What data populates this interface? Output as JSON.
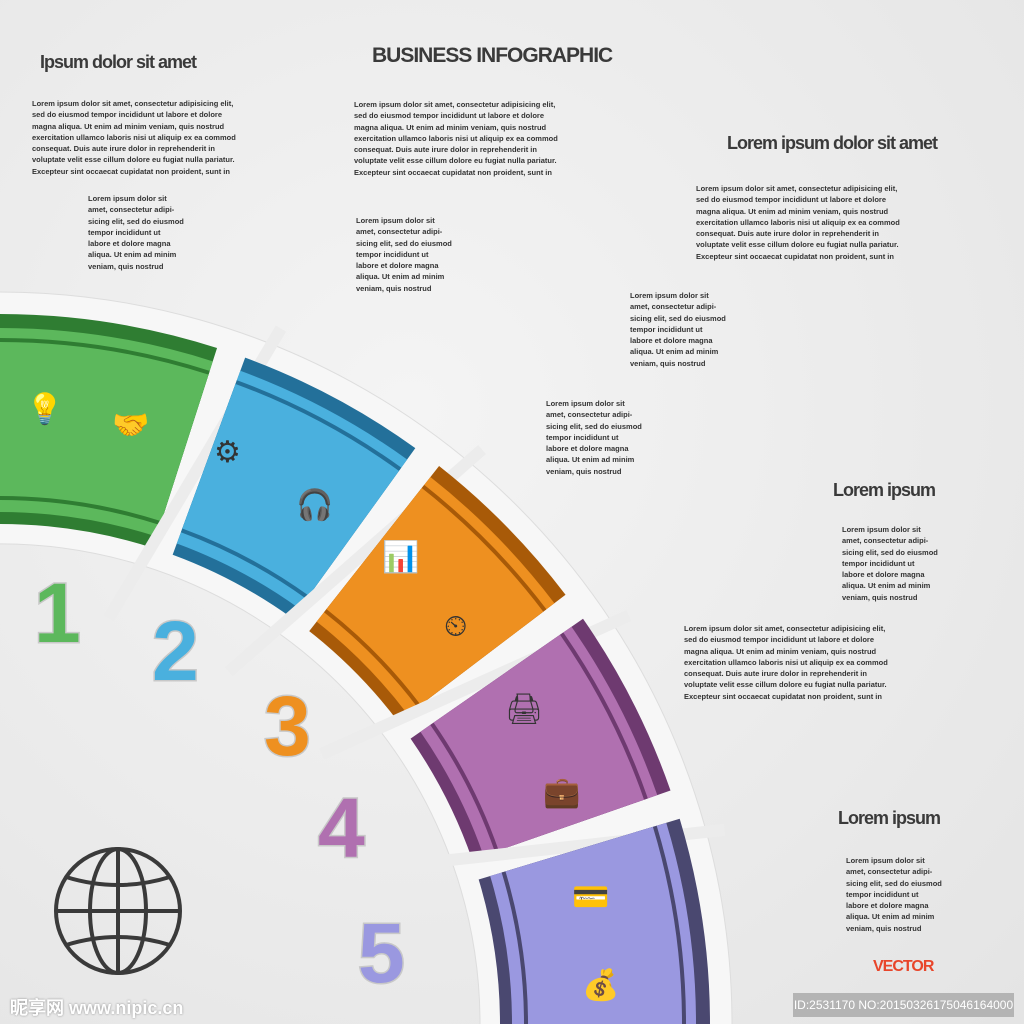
{
  "title": "BUSINESS INFOGRAPHIC",
  "headings": {
    "top_left": "Ipsum dolor sit amet",
    "right": "Lorem ipsum dolor sit amet",
    "mid_right": "Lorem ipsum",
    "bottom_right": "Lorem ipsum"
  },
  "long_text": [
    "Lorem ipsum dolor sit amet, consectetur adipisicing elit,",
    "sed do eiusmod tempor incididunt ut labore et dolore",
    "magna aliqua. Ut enim ad minim veniam, quis nostrud",
    "exercitation ullamco laboris nisi ut aliquip ex ea commod",
    "consequat. Duis aute irure dolor in reprehenderit in",
    "voluptate velit esse cillum dolore eu fugiat nulla pariatur.",
    "Excepteur sint occaecat cupidatat non proident, sunt in"
  ],
  "short_text": [
    "Lorem ipsum dolor sit",
    "amet, consectetur adipi-",
    "sicing elit, sed do eiusmod",
    "tempor incididunt ut",
    "labore et dolore magna",
    "aliqua. Ut enim ad minim",
    "veniam, quis nostrud"
  ],
  "steps": [
    {
      "number": "1",
      "color": "#5cb85c",
      "dark": "#2f7d32",
      "icons": [
        "lightbulb-icon",
        "handshake-icon"
      ]
    },
    {
      "number": "2",
      "color": "#4ab0de",
      "dark": "#23709a",
      "icons": [
        "gears-icon",
        "headset-icon"
      ]
    },
    {
      "number": "3",
      "color": "#ee9020",
      "dark": "#a85a08",
      "icons": [
        "bar-chart-icon",
        "clock-icon"
      ]
    },
    {
      "number": "4",
      "color": "#b070b0",
      "dark": "#6e3a70",
      "icons": [
        "printer-icon",
        "briefcase-icon"
      ]
    },
    {
      "number": "5",
      "color": "#9a98e0",
      "dark": "#4a4870",
      "icons": [
        "credit-card-icon",
        "money-bag-icon"
      ]
    }
  ],
  "vector_label": "VECTOR",
  "watermark": "昵享网 www.nipic.cn",
  "image_id": "ID:2531170 NO:20150326175046164000"
}
